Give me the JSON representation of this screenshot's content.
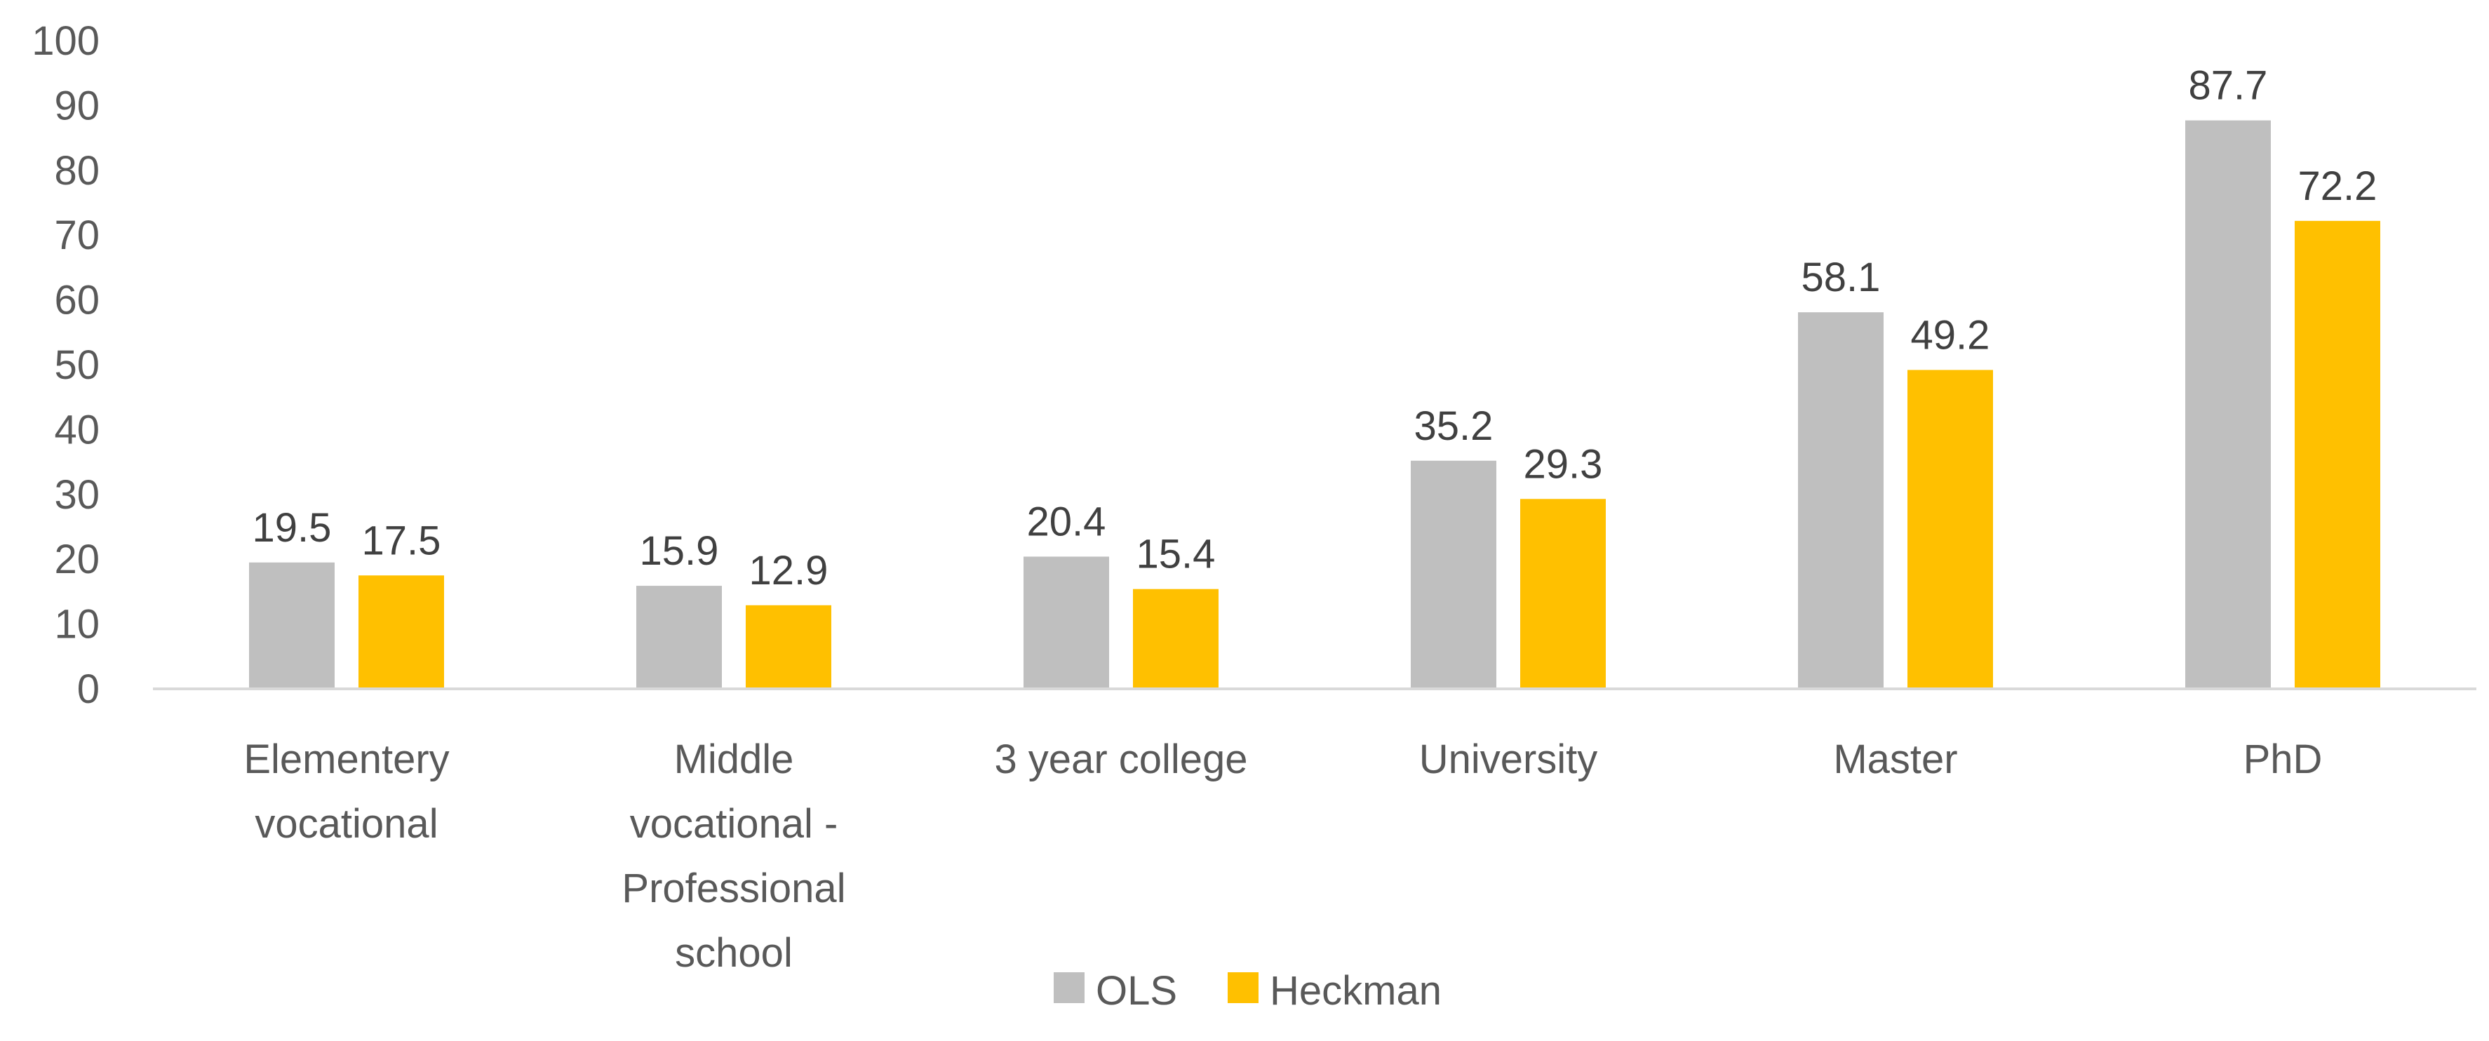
{
  "chart_data": {
    "type": "bar",
    "title": "",
    "xlabel": "",
    "ylabel": "",
    "ylim": [
      0,
      100
    ],
    "yticks": [
      0,
      10,
      20,
      30,
      40,
      50,
      60,
      70,
      80,
      90,
      100
    ],
    "grid": false,
    "legend_position": "bottom",
    "categories": [
      [
        "Elementery",
        "vocational"
      ],
      [
        "Middle",
        "vocational -",
        "Professional",
        "school"
      ],
      [
        "3 year college"
      ],
      [
        "University"
      ],
      [
        "Master"
      ],
      [
        "PhD"
      ]
    ],
    "series": [
      {
        "name": "OLS",
        "color": "#BFBFBF",
        "values": [
          19.5,
          15.9,
          20.4,
          35.2,
          58.1,
          87.7
        ]
      },
      {
        "name": "Heckman",
        "color": "#FFC000",
        "values": [
          17.5,
          12.9,
          15.4,
          29.3,
          49.2,
          72.2
        ]
      }
    ],
    "axis_color": "#D9D9D9"
  }
}
